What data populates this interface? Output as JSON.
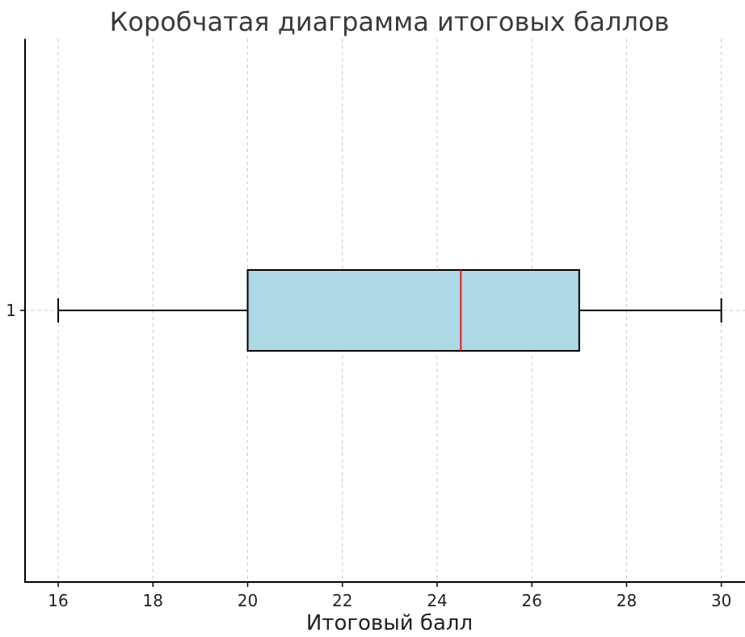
{
  "chart_data": {
    "type": "boxplot",
    "orientation": "horizontal",
    "title": "Коробчатая диаграмма итоговых баллов",
    "xlabel": "Итоговый балл",
    "ylabel": "",
    "xlim": [
      15.3,
      30.5
    ],
    "x_ticks": [
      "16",
      "18",
      "20",
      "22",
      "24",
      "26",
      "28",
      "30"
    ],
    "y_ticks": [
      "1"
    ],
    "grid": "x-dashed",
    "boxes": [
      {
        "category": "1",
        "whisker_low": 16,
        "q1": 20,
        "median": 24.5,
        "q3": 27,
        "whisker_high": 30
      }
    ],
    "colors": {
      "box_fill": "#add8e6",
      "median_line": "#e31a1c",
      "outline": "#000000",
      "grid": "#c8c8c8"
    }
  }
}
